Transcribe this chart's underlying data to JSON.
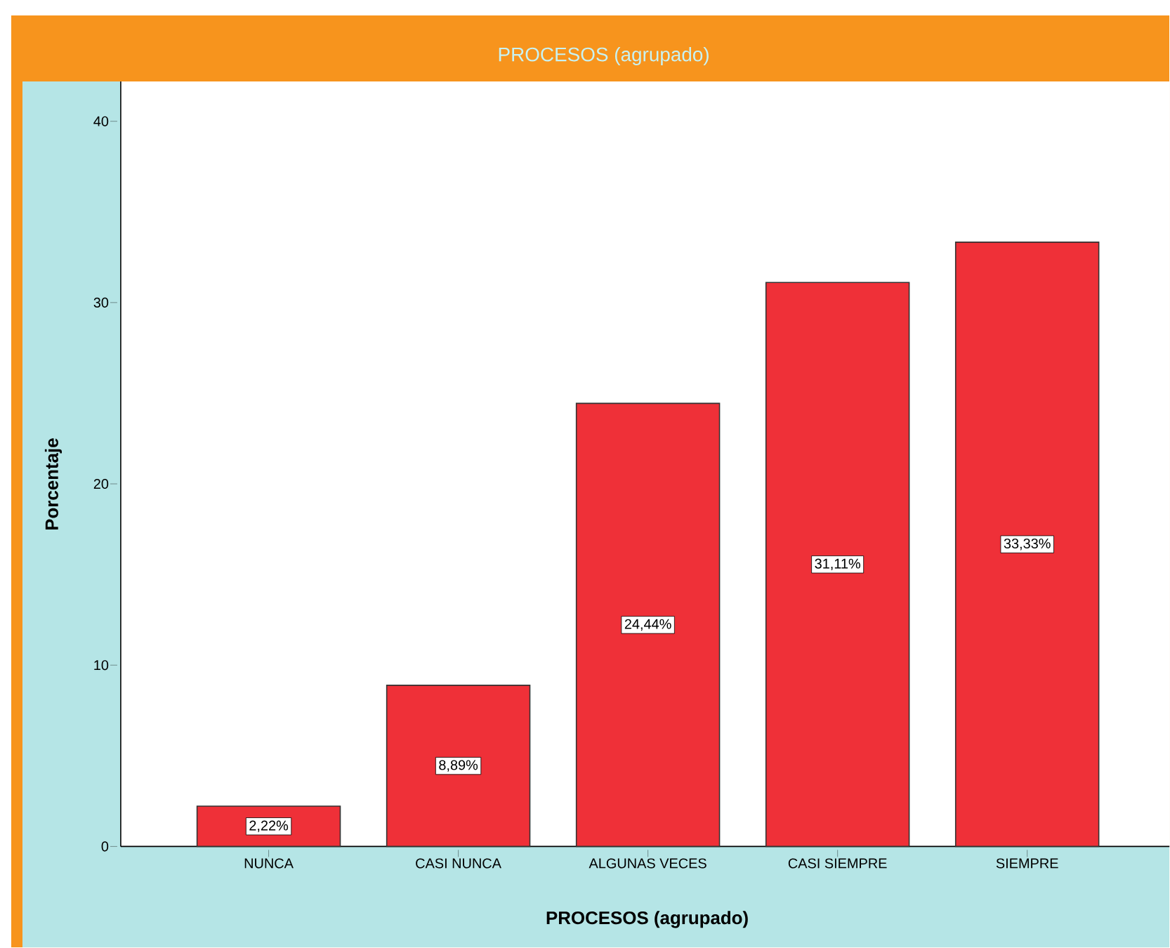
{
  "chart_data": {
    "type": "bar",
    "title": "PROCESOS (agrupado)",
    "xlabel": "PROCESOS (agrupado)",
    "ylabel": "Porcentaje",
    "categories": [
      "NUNCA",
      "CASI NUNCA",
      "ALGUNAS VECES",
      "CASI SIEMPRE",
      "SIEMPRE"
    ],
    "values": [
      2.22,
      8.89,
      24.44,
      31.11,
      33.33
    ],
    "value_labels": [
      "2,22%",
      "8,89%",
      "24,44%",
      "31,11%",
      "33,33%"
    ],
    "color": "#ef3038",
    "ylim": [
      0,
      42.2
    ],
    "yticks": [
      0,
      10,
      20,
      30,
      40
    ]
  }
}
